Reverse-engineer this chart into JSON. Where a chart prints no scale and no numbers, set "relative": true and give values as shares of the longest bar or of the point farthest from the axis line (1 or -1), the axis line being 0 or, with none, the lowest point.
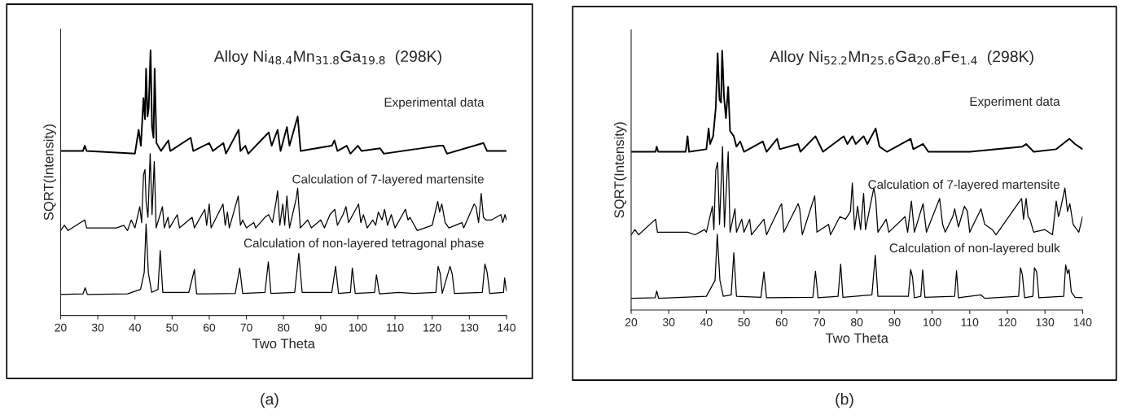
{
  "chart_data": [
    {
      "type": "line",
      "title": "Alloy Ni$_{48.4}$Mn$_{31.8}$Ga$_{19.8}$  (298K)",
      "xlabel": "Two Theta",
      "ylabel": "SQRT(Intensity)",
      "relative": true,
      "tick_labels": "x",
      "xlim": [
        20,
        140
      ],
      "xticks": [
        20,
        30,
        40,
        50,
        60,
        70,
        80,
        90,
        100,
        110,
        120,
        130,
        140
      ],
      "annotations": [
        "(a)"
      ],
      "series": [
        {
          "name": "Experimental data",
          "color": "#000000",
          "x": [
            20,
            26,
            26.5,
            27,
            40,
            41,
            41.6,
            42.3,
            42.7,
            43,
            43.4,
            43.7,
            44.2,
            44.6,
            45,
            45.3,
            45.8,
            47,
            49,
            49.5,
            55,
            55.7,
            60,
            61,
            63.8,
            64.5,
            67.9,
            68.4,
            69.7,
            70.5,
            76,
            76.8,
            78.4,
            79.2,
            80.9,
            81.6,
            83.8,
            84.6,
            93,
            93.7,
            94.5,
            97,
            98,
            100,
            101,
            106,
            107,
            122,
            123,
            124,
            133.8,
            134.8,
            140
          ],
          "values": [
            0.62,
            0.62,
            0.64,
            0.62,
            0.61,
            0.7,
            0.64,
            0.82,
            0.74,
            0.93,
            0.75,
            0.78,
            1.0,
            0.71,
            0.67,
            0.93,
            0.65,
            0.62,
            0.66,
            0.62,
            0.67,
            0.62,
            0.65,
            0.62,
            0.65,
            0.61,
            0.7,
            0.62,
            0.64,
            0.61,
            0.69,
            0.64,
            0.7,
            0.62,
            0.71,
            0.64,
            0.75,
            0.62,
            0.64,
            0.66,
            0.62,
            0.64,
            0.61,
            0.64,
            0.62,
            0.63,
            0.61,
            0.64,
            0.64,
            0.61,
            0.65,
            0.62,
            0.62
          ]
        },
        {
          "name": "Calculation of 7-layered martensite",
          "color": "#000000",
          "x": [
            20,
            21,
            22,
            26.5,
            27,
            35,
            37,
            38,
            39,
            40,
            41.3,
            41.8,
            42.3,
            42.7,
            43,
            43.5,
            44.1,
            44.6,
            45.2,
            45.7,
            47.4,
            47.9,
            48.9,
            49.3,
            51.4,
            52,
            55.4,
            56,
            58.8,
            59.3,
            60,
            60.5,
            63.7,
            64.3,
            64.9,
            65.4,
            67.8,
            68.4,
            69,
            70,
            72,
            72.5,
            75,
            76,
            77,
            78,
            78.4,
            79,
            79.8,
            80.3,
            80.9,
            81.6,
            83.4,
            83.8,
            84.5,
            86.5,
            87.5,
            90,
            91,
            92.5,
            93.8,
            94.5,
            96,
            96.8,
            97.5,
            100.2,
            100.8,
            101.5,
            102.5,
            104,
            104.8,
            105.5,
            106.5,
            107.2,
            108,
            109,
            110,
            112.8,
            113.5,
            114,
            116,
            120,
            121.5,
            122,
            122.6,
            123.5,
            124.5,
            128,
            128.5,
            131.3,
            131.8,
            132.5,
            133.2,
            133.8,
            134.5,
            136,
            138.5,
            139,
            139.6,
            140
          ],
          "values": [
            0.32,
            0.34,
            0.32,
            0.36,
            0.33,
            0.33,
            0.34,
            0.32,
            0.36,
            0.33,
            0.41,
            0.35,
            0.53,
            0.55,
            0.43,
            0.37,
            0.61,
            0.38,
            0.58,
            0.33,
            0.41,
            0.33,
            0.37,
            0.33,
            0.38,
            0.33,
            0.37,
            0.33,
            0.4,
            0.34,
            0.42,
            0.33,
            0.42,
            0.34,
            0.39,
            0.33,
            0.45,
            0.34,
            0.36,
            0.33,
            0.35,
            0.33,
            0.37,
            0.38,
            0.35,
            0.43,
            0.47,
            0.34,
            0.42,
            0.34,
            0.45,
            0.33,
            0.44,
            0.48,
            0.33,
            0.36,
            0.33,
            0.36,
            0.33,
            0.38,
            0.4,
            0.34,
            0.38,
            0.41,
            0.35,
            0.42,
            0.35,
            0.38,
            0.33,
            0.36,
            0.34,
            0.39,
            0.36,
            0.4,
            0.34,
            0.38,
            0.33,
            0.4,
            0.36,
            0.37,
            0.32,
            0.34,
            0.43,
            0.39,
            0.42,
            0.35,
            0.33,
            0.35,
            0.33,
            0.42,
            0.41,
            0.35,
            0.46,
            0.37,
            0.36,
            0.36,
            0.38,
            0.35,
            0.38,
            0.36
          ]
        },
        {
          "name": "Calculation of non-layered tetragonal phase",
          "color": "#000000",
          "x": [
            20,
            26,
            26.6,
            27.2,
            38,
            41.5,
            42.5,
            43,
            43.6,
            44.5,
            46.2,
            46.8,
            47.5,
            54.5,
            56,
            56.6,
            67,
            68.2,
            69,
            75,
            75.9,
            76.6,
            83,
            84.1,
            85,
            93,
            94,
            94.8,
            98,
            98.5,
            99.3,
            104.5,
            105,
            105.8,
            111,
            115,
            121,
            121.6,
            122.2,
            122.7,
            124.8,
            125.4,
            126,
            133.5,
            134.2,
            134.8,
            135.5,
            139.2,
            139.5,
            140
          ],
          "values": [
            0.079,
            0.081,
            0.104,
            0.079,
            0.081,
            0.098,
            0.162,
            0.345,
            0.162,
            0.087,
            0.098,
            0.245,
            0.087,
            0.087,
            0.173,
            0.081,
            0.083,
            0.179,
            0.083,
            0.087,
            0.202,
            0.083,
            0.087,
            0.234,
            0.087,
            0.087,
            0.185,
            0.083,
            0.087,
            0.179,
            0.083,
            0.087,
            0.153,
            0.081,
            0.087,
            0.083,
            0.087,
            0.185,
            0.156,
            0.083,
            0.185,
            0.156,
            0.083,
            0.087,
            0.194,
            0.162,
            0.083,
            0.087,
            0.141,
            0.092
          ]
        }
      ]
    },
    {
      "type": "line",
      "title": "Alloy Ni$_{52.2}$Mn$_{25.6}$Ga$_{20.8}$Fe$_{1.4}$  (298K)",
      "xlabel": "Two Theta",
      "ylabel": "SQRT(Intensity)",
      "relative": true,
      "tick_labels": "x",
      "xlim": [
        20,
        140
      ],
      "xticks": [
        20,
        30,
        40,
        50,
        60,
        70,
        80,
        90,
        100,
        110,
        120,
        130,
        140
      ],
      "annotations": [
        "(b)"
      ],
      "series": [
        {
          "name": "Experiment data",
          "color": "#000000",
          "x": [
            20,
            26.5,
            26.8,
            27.2,
            34.5,
            35,
            35.4,
            40,
            40.6,
            41,
            41.8,
            42.5,
            43,
            43.5,
            43.9,
            44.2,
            44.7,
            45.2,
            45.8,
            46.3,
            47.3,
            48,
            49,
            50,
            55,
            56,
            58.8,
            59.5,
            64.4,
            65,
            69,
            70,
            71,
            76.5,
            77.5,
            78.8,
            79.7,
            81.8,
            82.8,
            85,
            86,
            88,
            94.3,
            95,
            97.6,
            99,
            110,
            124,
            125,
            127,
            133,
            136.5,
            138,
            140
          ],
          "values": [
            0.61,
            0.61,
            0.63,
            0.61,
            0.61,
            0.67,
            0.61,
            0.62,
            0.7,
            0.64,
            0.67,
            0.78,
            0.99,
            0.81,
            0.8,
            1.0,
            0.82,
            0.74,
            0.86,
            0.69,
            0.67,
            0.63,
            0.65,
            0.61,
            0.65,
            0.61,
            0.66,
            0.62,
            0.64,
            0.61,
            0.67,
            0.64,
            0.61,
            0.67,
            0.64,
            0.67,
            0.64,
            0.67,
            0.64,
            0.7,
            0.63,
            0.61,
            0.66,
            0.62,
            0.64,
            0.61,
            0.61,
            0.63,
            0.64,
            0.61,
            0.62,
            0.66,
            0.64,
            0.62
          ]
        },
        {
          "name": "Calculation of 7-layered martensite",
          "color": "#000000",
          "x": [
            20,
            21,
            22,
            26.5,
            27,
            30,
            35,
            37,
            39.5,
            40,
            41.6,
            42,
            42.5,
            43,
            43.5,
            44.3,
            44.8,
            45.8,
            46.3,
            47.6,
            48,
            49.4,
            50,
            51.5,
            52,
            55.3,
            56,
            59.6,
            60,
            60.6,
            64.4,
            64.8,
            65.5,
            68.8,
            69.4,
            72.5,
            73,
            75.5,
            77,
            78.3,
            78.8,
            79.4,
            80.2,
            81,
            81.8,
            82.3,
            84.5,
            85,
            85.6,
            87.8,
            88.5,
            92.8,
            93.5,
            94.5,
            95.3,
            97.6,
            98.5,
            102,
            102.8,
            103.5,
            105.5,
            106,
            107,
            108.6,
            109.4,
            110,
            113,
            114,
            116,
            117,
            123.8,
            124.3,
            125,
            125.5,
            126,
            127,
            130,
            132,
            133,
            133.6,
            134,
            135.3,
            136,
            136.6,
            137.5,
            139,
            140
          ],
          "values": [
            0.29,
            0.31,
            0.29,
            0.35,
            0.3,
            0.3,
            0.3,
            0.29,
            0.31,
            0.3,
            0.4,
            0.31,
            0.54,
            0.57,
            0.33,
            0.63,
            0.32,
            0.61,
            0.3,
            0.39,
            0.3,
            0.35,
            0.3,
            0.35,
            0.29,
            0.35,
            0.29,
            0.4,
            0.41,
            0.3,
            0.41,
            0.39,
            0.29,
            0.44,
            0.3,
            0.33,
            0.29,
            0.36,
            0.35,
            0.38,
            0.49,
            0.31,
            0.4,
            0.31,
            0.45,
            0.31,
            0.47,
            0.43,
            0.3,
            0.35,
            0.3,
            0.36,
            0.3,
            0.42,
            0.3,
            0.41,
            0.3,
            0.43,
            0.33,
            0.3,
            0.36,
            0.39,
            0.32,
            0.4,
            0.38,
            0.3,
            0.39,
            0.33,
            0.31,
            0.29,
            0.43,
            0.35,
            0.43,
            0.36,
            0.35,
            0.3,
            0.31,
            0.29,
            0.42,
            0.36,
            0.38,
            0.47,
            0.38,
            0.41,
            0.33,
            0.3,
            0.36
          ]
        },
        {
          "name": "Calculation of non-layered bulk",
          "color": "#000000",
          "x": [
            20,
            26.4,
            26.8,
            27.3,
            40,
            42.3,
            42.9,
            43.6,
            44.5,
            46.6,
            47.3,
            48,
            54.5,
            55.3,
            56,
            68.3,
            69,
            69.7,
            75,
            75.7,
            76.3,
            84,
            84.9,
            85.6,
            93.7,
            94.3,
            94.8,
            95.3,
            97,
            97.5,
            98.1,
            106,
            106.5,
            107,
            113,
            114,
            123,
            123.5,
            124,
            124.6,
            126.8,
            127.2,
            127.8,
            128.4,
            135,
            135.5,
            136,
            136.4,
            137,
            138,
            140
          ],
          "values": [
            0.045,
            0.047,
            0.073,
            0.045,
            0.053,
            0.114,
            0.292,
            0.114,
            0.053,
            0.058,
            0.221,
            0.053,
            0.049,
            0.147,
            0.047,
            0.049,
            0.149,
            0.047,
            0.053,
            0.177,
            0.049,
            0.058,
            0.211,
            0.053,
            0.053,
            0.156,
            0.127,
            0.047,
            0.053,
            0.155,
            0.049,
            0.053,
            0.152,
            0.047,
            0.058,
            0.045,
            0.053,
            0.163,
            0.136,
            0.047,
            0.053,
            0.163,
            0.147,
            0.047,
            0.053,
            0.174,
            0.141,
            0.156,
            0.07,
            0.049,
            0.047
          ]
        }
      ]
    }
  ]
}
